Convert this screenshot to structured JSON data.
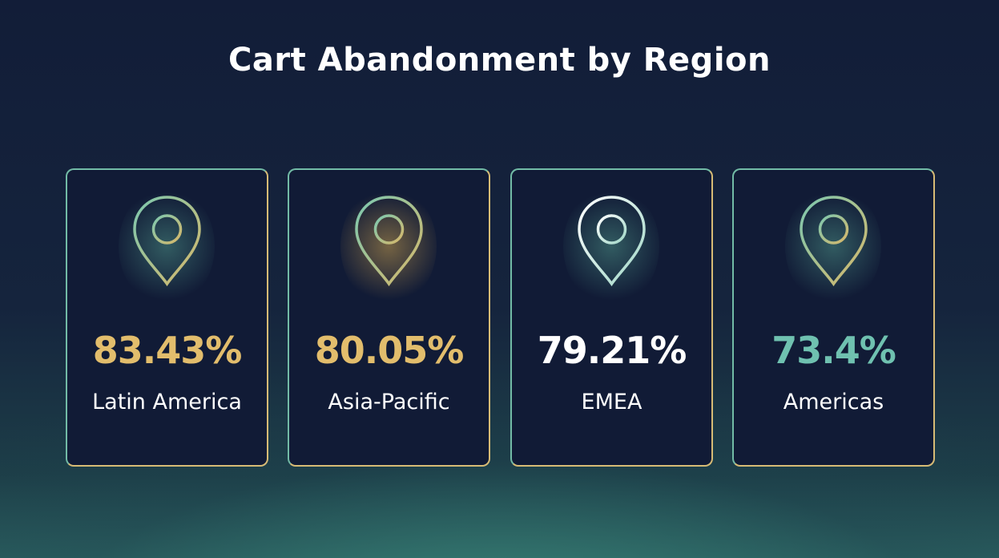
{
  "header": {
    "title": "Cart Abandonment by Region"
  },
  "cards": [
    {
      "value": "83.43%",
      "label": "Latin America",
      "color": "#e2bd6c"
    },
    {
      "value": "80.05%",
      "label": "Asia-Pacific",
      "color": "#e2bd6c"
    },
    {
      "value": "79.21%",
      "label": "EMEA",
      "color": "#ffffff"
    },
    {
      "value": "73.4%",
      "label": "Americas",
      "color": "#6fc1b0"
    }
  ]
}
